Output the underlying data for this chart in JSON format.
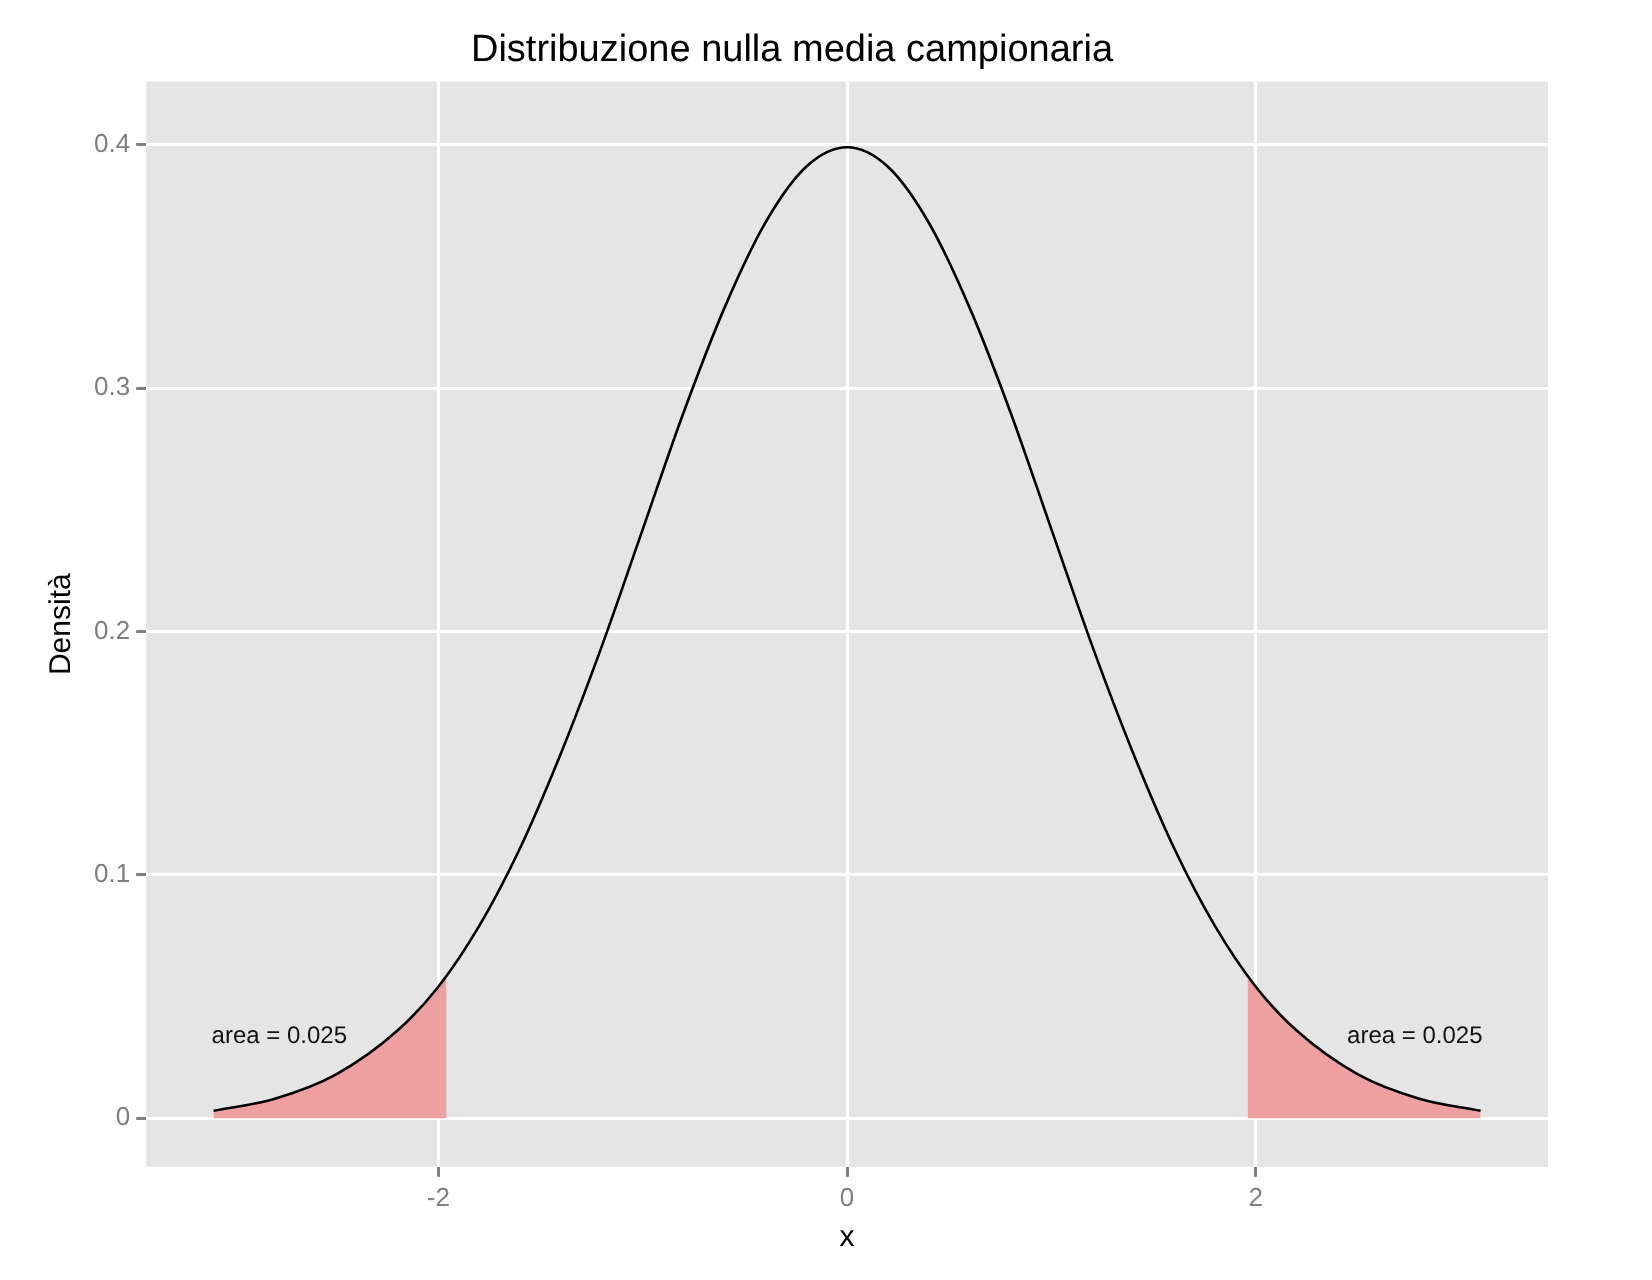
{
  "chart_data": {
    "type": "line",
    "title": "Distribuzione nulla media campionaria",
    "xlabel": "x",
    "ylabel": "Densità",
    "xlim": [
      -3.43,
      3.43
    ],
    "xticks": [
      -2,
      0,
      2
    ],
    "ylim": [
      -0.02,
      0.426
    ],
    "yticks": [
      0,
      0.1,
      0.2,
      0.3,
      0.4
    ],
    "grid": true,
    "legend": false,
    "marker": "none",
    "line_style": "solid",
    "series": [
      {
        "type": "area",
        "color": "#eea0a0",
        "x": [
          -3.1,
          -2.8,
          -2.5,
          -2.2,
          -1.96
        ],
        "values": [
          0.003,
          0.008,
          0.018,
          0.036,
          0.058
        ]
      },
      {
        "type": "area",
        "color": "#eea0a0",
        "x": [
          1.96,
          2.2,
          2.5,
          2.8,
          3.1
        ],
        "values": [
          0.058,
          0.036,
          0.018,
          0.008,
          0.003
        ]
      },
      {
        "color": "#000000",
        "x": [
          -3.1,
          -2.8,
          -2.5,
          -2.2,
          -2.0,
          -1.8,
          -1.6,
          -1.4,
          -1.2,
          -1.0,
          -0.8,
          -0.6,
          -0.4,
          -0.2,
          0,
          0.2,
          0.4,
          0.6,
          0.8,
          1.0,
          1.2,
          1.4,
          1.6,
          1.8,
          2.0,
          2.2,
          2.5,
          2.8,
          3.1
        ],
        "values": [
          0.003,
          0.008,
          0.018,
          0.036,
          0.054,
          0.079,
          0.111,
          0.15,
          0.194,
          0.242,
          0.29,
          0.333,
          0.368,
          0.391,
          0.399,
          0.391,
          0.368,
          0.333,
          0.29,
          0.242,
          0.194,
          0.15,
          0.111,
          0.079,
          0.054,
          0.036,
          0.018,
          0.008,
          0.003
        ]
      }
    ],
    "annotations": [
      "area = 0.025",
      "area = 0.025"
    ]
  }
}
